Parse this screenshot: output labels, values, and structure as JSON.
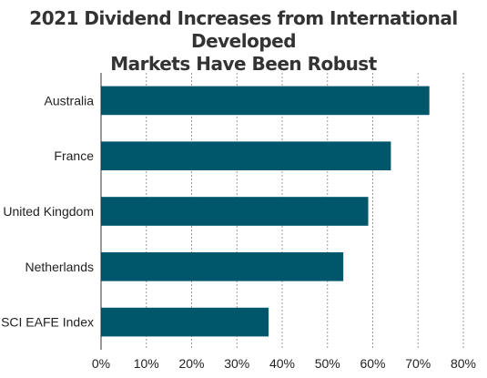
{
  "chart_data": {
    "type": "bar",
    "orientation": "horizontal",
    "title_lines": [
      "2021 Dividend Increases from International Developed",
      "Markets Have Been Robust"
    ],
    "categories": [
      "Australia",
      "France",
      "United Kingdom",
      "Netherlands",
      "MSCI EAFE Index"
    ],
    "values": [
      72.5,
      64,
      59,
      53.5,
      37
    ],
    "xlim": [
      0,
      80
    ],
    "x_ticks": [
      0,
      10,
      20,
      30,
      40,
      50,
      60,
      70,
      80
    ],
    "x_tick_labels": [
      "0%",
      "10%",
      "20%",
      "30%",
      "40%",
      "50%",
      "60%",
      "70%",
      "80%"
    ],
    "grid": "vertical dashed",
    "bar_color": "#00566a",
    "xlabel": "",
    "ylabel": ""
  }
}
